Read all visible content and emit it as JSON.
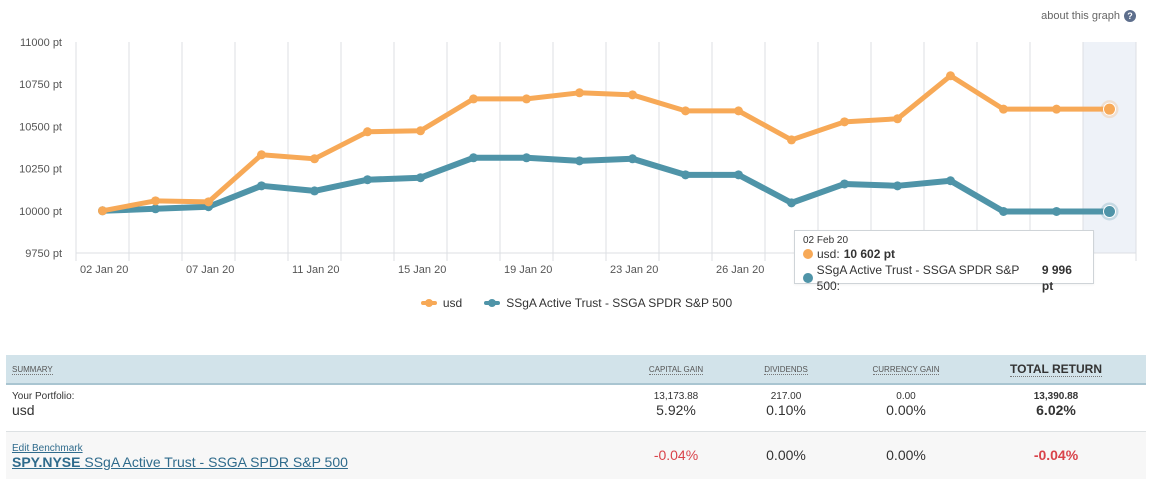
{
  "about_link": "about this graph",
  "chart_data": {
    "type": "line",
    "title": "",
    "xlabel": "",
    "ylabel": "",
    "ylim": [
      9750,
      11000
    ],
    "y_ticks": [
      9750,
      10000,
      10250,
      10500,
      10750,
      11000
    ],
    "y_tick_suffix": " pt",
    "x_tick_labels": [
      "02 Jan 20",
      "07 Jan 20",
      "11 Jan 20",
      "15 Jan 20",
      "19 Jan 20",
      "23 Jan 20",
      "26 Jan 20",
      "",
      "",
      ""
    ],
    "grid": true,
    "legend_position": "bottom-center",
    "highlighted_index": 19,
    "series": [
      {
        "name": "usd",
        "color": "#f7a957",
        "values": [
          10000,
          10059,
          10053,
          10332,
          10308,
          10468,
          10474,
          10663,
          10663,
          10699,
          10687,
          10592,
          10592,
          10420,
          10527,
          10545,
          10800,
          10602,
          10602,
          10602
        ]
      },
      {
        "name": "SSgA Active Trust - SSGA SPDR S&P 500",
        "color": "#4f94a8",
        "values": [
          10000,
          10012,
          10024,
          10148,
          10118,
          10184,
          10196,
          10314,
          10314,
          10296,
          10308,
          10213,
          10213,
          10047,
          10159,
          10148,
          10178,
          9996,
          9996,
          9996
        ]
      }
    ]
  },
  "tooltip": {
    "date": "02 Feb 20",
    "rows": [
      {
        "label": "usd: ",
        "value": "10 602 pt",
        "color": "#f7a957"
      },
      {
        "label": "SSgA Active Trust - SSGA SPDR S&P 500: ",
        "value": "9 996 pt",
        "color": "#4f94a8"
      }
    ]
  },
  "legend": [
    {
      "label": "usd",
      "color": "#f7a957"
    },
    {
      "label": "SSgA Active Trust - SSGA SPDR S&P 500",
      "color": "#4f94a8"
    }
  ],
  "summary": {
    "headers": {
      "summary": "SUMMARY",
      "capital_gain": "CAPITAL GAIN",
      "dividends": "DIVIDENDS",
      "currency_gain": "CURRENCY GAIN",
      "total_return": "TOTAL RETURN"
    },
    "portfolio": {
      "label": "Your Portfolio:",
      "name": "usd",
      "capital_gain_amount": "13,173.88",
      "capital_gain_pct": "5.92%",
      "dividends_amount": "217.00",
      "dividends_pct": "0.10%",
      "currency_gain_amount": "0.00",
      "currency_gain_pct": "0.00%",
      "total_return_amount": "13,390.88",
      "total_return_pct": "6.02%"
    },
    "benchmark": {
      "edit_label": "Edit Benchmark",
      "ticker": "SPY.NYSE",
      "name": "SSgA Active Trust - SSGA SPDR S&P 500",
      "capital_gain_pct": "-0.04%",
      "dividends_pct": "0.00%",
      "currency_gain_pct": "0.00%",
      "total_return_pct": "-0.04%"
    }
  }
}
